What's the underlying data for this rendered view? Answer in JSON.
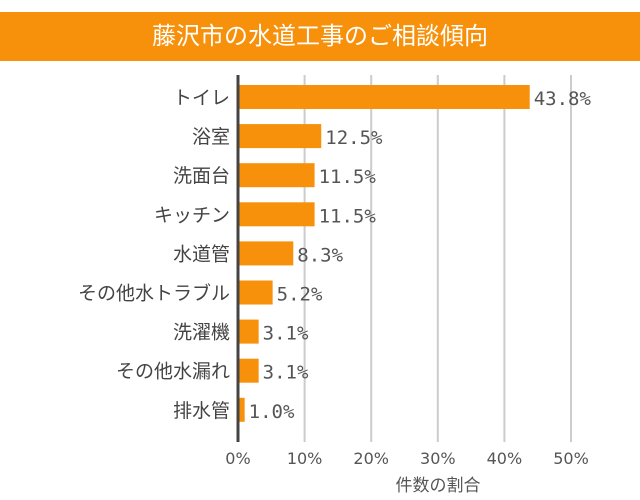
{
  "chart_data": {
    "type": "bar",
    "orientation": "horizontal",
    "title": "藤沢市の水道工事のご相談傾向",
    "categories": [
      "トイレ",
      "浴室",
      "洗面台",
      "キッチン",
      "水道管",
      "その他水トラブル",
      "洗濯機",
      "その他水漏れ",
      "排水管"
    ],
    "values": [
      43.8,
      12.5,
      11.5,
      11.5,
      8.3,
      5.2,
      3.1,
      3.1,
      1.0
    ],
    "value_labels": [
      "43.8%",
      "12.5%",
      "11.5%",
      "11.5%",
      "8.3%",
      "5.2%",
      "3.1%",
      "3.1%",
      "1.0%"
    ],
    "xlabel": "件数の割合",
    "ylabel": "",
    "xlim": [
      0,
      50
    ],
    "xticks": [
      "0%",
      "10%",
      "20%",
      "30%",
      "40%",
      "50%"
    ],
    "grid": "vertical",
    "bar_color": "#F7900A",
    "title_bg_color": "#F7900A"
  }
}
